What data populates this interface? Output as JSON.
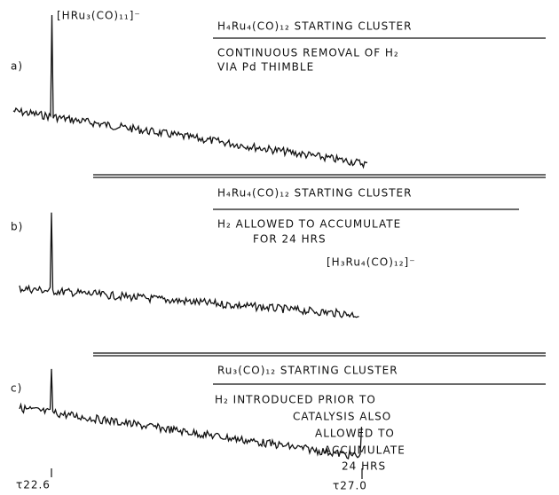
{
  "panels": [
    {
      "label": "a)",
      "peak_label": "[HRu₃(CO)₁₁]⁻",
      "heading": "H₄Ru₄(CO)₁₂  STARTING  CLUSTER",
      "lines": [
        "CONTINUOUS  REMOVAL  OF  H₂",
        "VIA  Pd  THIMBLE"
      ]
    },
    {
      "label": "b)",
      "peak_label": "[H₃Ru₄(CO)₁₂]⁻",
      "heading": "H₄Ru₄(CO)₁₂  STARTING  CLUSTER",
      "lines": [
        "H₂  ALLOWED  TO  ACCUMULATE",
        "FOR  24 HRS"
      ]
    },
    {
      "label": "c)",
      "heading": "Ru₃(CO)₁₂  STARTING  CLUSTER",
      "lines": [
        "H₂ INTRODUCED  PRIOR  TO",
        "CATALYSIS  ALSO",
        "ALLOWED  TO",
        "ACCUMULATE",
        "24 HRS"
      ]
    }
  ],
  "axis_labels": [
    "τ22.6",
    "τ27.0"
  ]
}
